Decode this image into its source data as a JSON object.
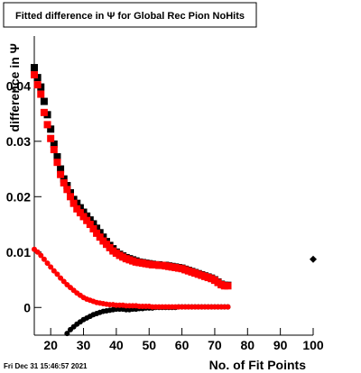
{
  "chart_data": {
    "type": "scatter",
    "title": "Fitted difference in  Ψ  for Global Rec Pion NoHits",
    "xlabel": "No. of Fit Points",
    "ylabel": "difference in  Ψ",
    "xlim": [
      15,
      100
    ],
    "ylim": [
      -0.005,
      0.049
    ],
    "x_ticks": [
      "20",
      "30",
      "40",
      "50",
      "60",
      "70",
      "80",
      "90",
      "100"
    ],
    "y_ticks": [
      "0",
      "0.01",
      "0.02",
      "0.03",
      "0.04"
    ],
    "grid": false,
    "legend": "none",
    "series": [
      {
        "color": "#000000",
        "marker": "square",
        "x": [
          15,
          16,
          17,
          18,
          19,
          20,
          21,
          22,
          23,
          24,
          25,
          26,
          27,
          28,
          29,
          30,
          31,
          32,
          33,
          34,
          35,
          36,
          37,
          38,
          39,
          40,
          41,
          42,
          43,
          44,
          45,
          46,
          47,
          48,
          49,
          50,
          51,
          52,
          53,
          54,
          55,
          56,
          57,
          58,
          59,
          60,
          61,
          62,
          63,
          64,
          65,
          66,
          67,
          68,
          69,
          70,
          71,
          72,
          73,
          74
        ],
        "y": [
          0.0433,
          0.0415,
          0.0398,
          0.0372,
          0.0348,
          0.0322,
          0.0295,
          0.0272,
          0.025,
          0.0232,
          0.022,
          0.0207,
          0.0195,
          0.0188,
          0.018,
          0.0172,
          0.0165,
          0.0158,
          0.0151,
          0.0143,
          0.0135,
          0.0127,
          0.0119,
          0.0112,
          0.0106,
          0.01,
          0.0096,
          0.0093,
          0.009,
          0.0088,
          0.0086,
          0.0084,
          0.0082,
          0.0081,
          0.008,
          0.0079,
          0.0078,
          0.0077,
          0.0077,
          0.0076,
          0.0076,
          0.0075,
          0.0074,
          0.0073,
          0.0072,
          0.0071,
          0.0069,
          0.0067,
          0.0065,
          0.0063,
          0.0061,
          0.0059,
          0.0057,
          0.0055,
          0.0053,
          0.005,
          0.0046,
          0.0042,
          0.004,
          0.004
        ]
      },
      {
        "color": "#ff0000",
        "marker": "square",
        "x": [
          15,
          16,
          17,
          18,
          19,
          20,
          21,
          22,
          23,
          24,
          25,
          26,
          27,
          28,
          29,
          30,
          31,
          32,
          33,
          34,
          35,
          36,
          37,
          38,
          39,
          40,
          41,
          42,
          43,
          44,
          45,
          46,
          47,
          48,
          49,
          50,
          51,
          52,
          53,
          54,
          55,
          56,
          57,
          58,
          59,
          60,
          61,
          62,
          63,
          64,
          65,
          66,
          67,
          68,
          69,
          70,
          71,
          72,
          73,
          74
        ],
        "y": [
          0.042,
          0.0402,
          0.0385,
          0.0352,
          0.033,
          0.0305,
          0.0285,
          0.0262,
          0.024,
          0.0225,
          0.0213,
          0.02,
          0.0188,
          0.0178,
          0.0171,
          0.0164,
          0.0157,
          0.015,
          0.0142,
          0.0134,
          0.0127,
          0.012,
          0.0114,
          0.0108,
          0.0102,
          0.0098,
          0.0094,
          0.0091,
          0.0088,
          0.0086,
          0.0084,
          0.0082,
          0.0081,
          0.008,
          0.0079,
          0.0078,
          0.0077,
          0.0077,
          0.0076,
          0.0076,
          0.0075,
          0.0074,
          0.0073,
          0.0072,
          0.0071,
          0.007,
          0.0068,
          0.0066,
          0.0064,
          0.0062,
          0.006,
          0.0058,
          0.0056,
          0.0054,
          0.0052,
          0.0049,
          0.0045,
          0.0041,
          0.0039,
          0.0039
        ]
      },
      {
        "color": "#000000",
        "marker": "circle",
        "x": [
          25,
          26,
          27,
          28,
          29,
          30,
          31,
          32,
          33,
          34,
          35,
          36,
          37,
          38,
          39,
          40,
          41,
          42,
          43,
          44,
          45,
          46,
          47,
          48,
          49,
          50,
          51,
          52,
          53,
          54,
          55,
          56,
          57,
          58,
          59,
          60,
          61,
          62,
          63,
          64,
          65,
          66,
          67,
          68,
          69,
          70,
          71,
          72,
          73,
          74
        ],
        "y": [
          -0.0047,
          -0.004,
          -0.0035,
          -0.003,
          -0.0026,
          -0.0022,
          -0.0019,
          -0.0016,
          -0.0013,
          -0.0011,
          -0.0009,
          -0.0007,
          -0.0006,
          -0.0005,
          -0.0004,
          -0.0003,
          -0.0003,
          -0.0003,
          -0.0004,
          -0.0004,
          -0.0003,
          -0.0003,
          -0.0002,
          -0.0002,
          -0.0001,
          -0.0001,
          -0.0001,
          0.0,
          0.0,
          0.0,
          0.0,
          0.0,
          0.0,
          0.0,
          0.0001,
          0.0001,
          0.0001,
          0.0001,
          0.0001,
          0.0001,
          0.0001,
          0.0001,
          0.0001,
          0.0001,
          0.0001,
          0.0001,
          0.0001,
          0.0001,
          0.0001,
          0.0001
        ]
      },
      {
        "color": "#ff0000",
        "marker": "circle",
        "x": [
          15,
          16,
          17,
          18,
          19,
          20,
          21,
          22,
          23,
          24,
          25,
          26,
          27,
          28,
          29,
          30,
          31,
          32,
          33,
          34,
          35,
          36,
          37,
          38,
          39,
          40,
          41,
          42,
          43,
          44,
          45,
          46,
          47,
          48,
          49,
          50,
          51,
          52,
          53,
          54,
          55,
          56,
          57,
          58,
          59,
          60,
          61,
          62,
          63,
          64,
          65,
          66,
          67,
          68,
          69,
          70,
          71,
          72,
          73,
          74
        ],
        "y": [
          0.0105,
          0.01,
          0.0094,
          0.0087,
          0.008,
          0.0073,
          0.0066,
          0.006,
          0.0053,
          0.0047,
          0.0041,
          0.0036,
          0.0031,
          0.0026,
          0.0022,
          0.0018,
          0.0015,
          0.0013,
          0.0011,
          0.0009,
          0.0008,
          0.0007,
          0.0006,
          0.0005,
          0.0005,
          0.0004,
          0.0004,
          0.0004,
          0.0003,
          0.0003,
          0.0003,
          0.0003,
          0.0002,
          0.0002,
          0.0002,
          0.0002,
          0.0001,
          0.0001,
          0.0001,
          0.0001,
          0.0001,
          0.0001,
          0.0001,
          0.0001,
          0.0001,
          0.0001,
          0.0001,
          0.0001,
          0.0001,
          0.0001,
          0.0001,
          0.0001,
          0.0001,
          0.0001,
          0.0001,
          0.0001,
          0.0001,
          0.0001,
          0.0001,
          0.0001
        ]
      },
      {
        "color": "#000000",
        "marker": "diamond",
        "x": [
          100
        ],
        "y": [
          0.0087
        ]
      }
    ]
  },
  "footer": {
    "timestamp": "Fri Dec 31 15:46:57 2021"
  }
}
